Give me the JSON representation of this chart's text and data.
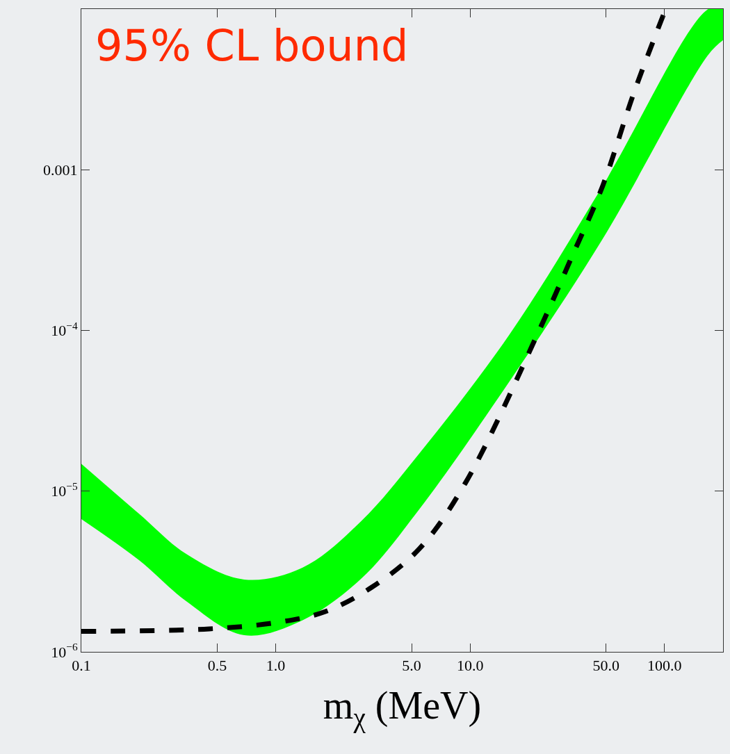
{
  "chart_data": {
    "type": "line",
    "title": "95% CL bound",
    "xlabel": "m$_{χ}$ (MeV)",
    "log": "xy",
    "grid": false,
    "xlim": [
      0.1,
      200
    ],
    "ylim": [
      1e-06,
      0.01
    ],
    "xticks": [
      0.1,
      0.5,
      {
        "value": 1,
        "label": "1.0"
      },
      {
        "value": 5,
        "label": "5.0"
      },
      {
        "value": 10,
        "label": "10.0"
      },
      {
        "value": 50,
        "label": "50.0"
      },
      {
        "value": 100,
        "label": "100.0"
      }
    ],
    "yticks": [
      {
        "value": 1e-06,
        "label": "10$^{−6}$"
      },
      {
        "value": 1e-05,
        "label": "10$^{−5}$"
      },
      {
        "value": 0.0001,
        "label": "10$^{−4}$"
      },
      0.001
    ],
    "series": [
      {
        "type": "area",
        "color": "#00ff00",
        "x": [
          0.1,
          0.199,
          0.346,
          0.688,
          1.37,
          2.75,
          5.47,
          15.9,
          48,
          168,
          200
        ],
        "values": [
          null,
          null,
          null,
          null,
          null,
          null,
          null,
          null,
          null,
          null,
          null
        ],
        "lower": [
          6.7e-06,
          3.7e-06,
          2.07e-06,
          1.27e-06,
          1.57e-06,
          2.85e-06,
          7.7e-06,
          4.8e-05,
          0.00037,
          0.0052,
          0.0064
        ],
        "upper": [
          1.48e-05,
          7.2e-06,
          4.07e-06,
          2.82e-06,
          3.34e-06,
          6.5e-06,
          1.71e-05,
          9.4e-05,
          0.00079,
          0.01,
          0.01
        ]
      },
      {
        "color": "#000000",
        "line_style": "dashed",
        "marker": "none",
        "x": [
          0.1,
          0.455,
          1.04,
          1.8,
          3.13,
          5.47,
          9.44,
          22.9,
          33.3,
          48,
          69.5,
          100
        ],
        "values": [
          1.34e-06,
          1.39e-06,
          1.53e-06,
          1.78e-06,
          2.53e-06,
          4.37e-06,
          1.12e-05,
          0.000103,
          0.000286,
          0.00079,
          0.003,
          0.0096
        ]
      }
    ]
  }
}
